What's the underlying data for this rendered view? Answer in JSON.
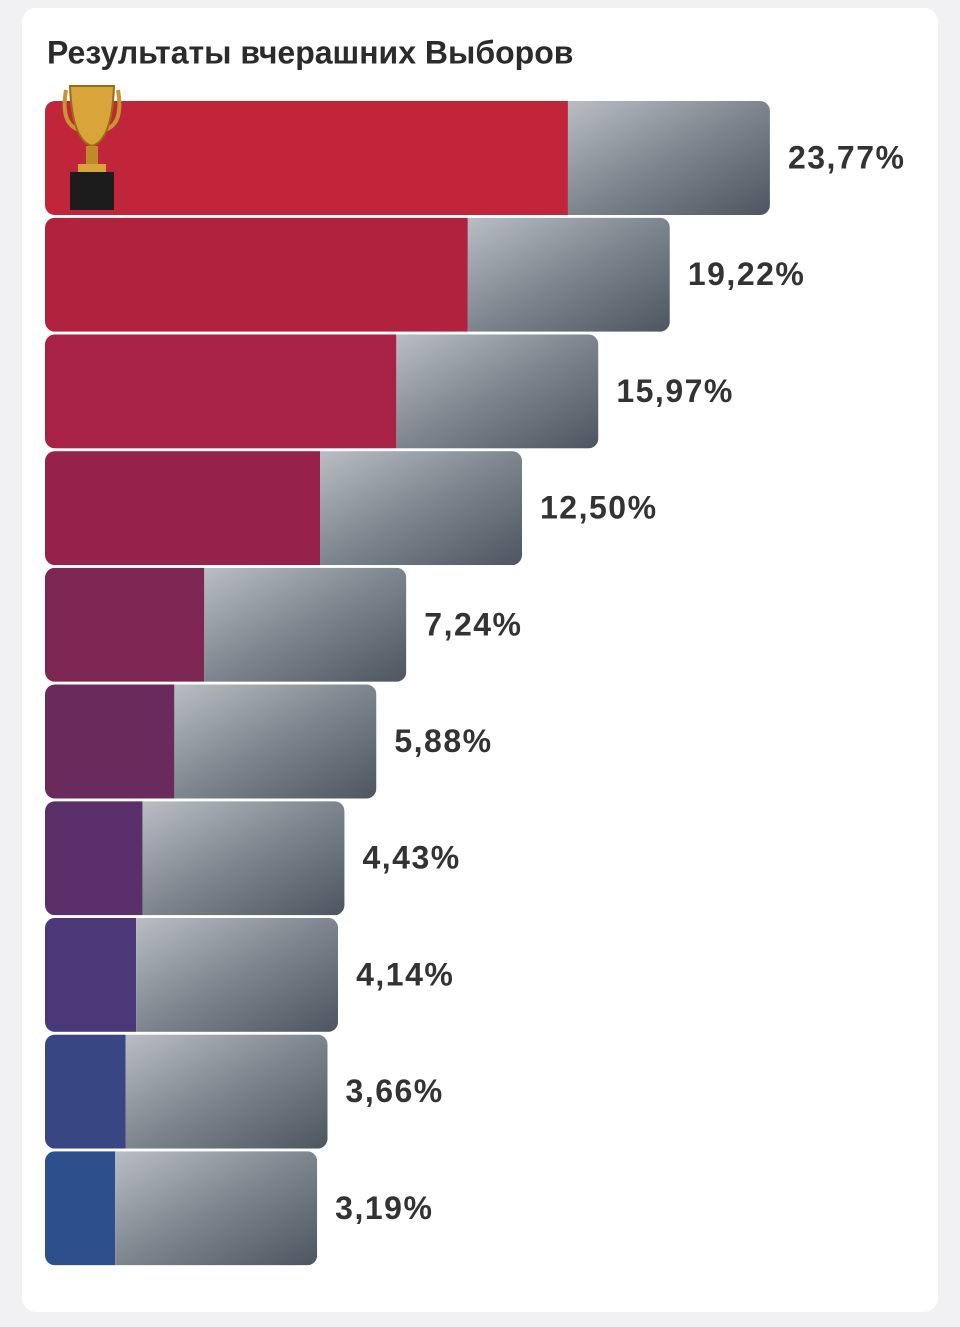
{
  "chart_data": {
    "type": "bar",
    "orientation": "horizontal",
    "title": "Результаты вчерашних Выборов",
    "values": [
      23.77,
      19.22,
      15.97,
      12.5,
      7.24,
      5.88,
      4.43,
      4.14,
      3.66,
      3.19
    ],
    "value_labels": [
      "23,77%",
      "19,22%",
      "15,97%",
      "12,50%",
      "7,24%",
      "5,88%",
      "4,43%",
      "4,14%",
      "3,66%",
      "3,19%"
    ],
    "colors": [
      "#c0253a",
      "#b1223f",
      "#a72244",
      "#96224b",
      "#7d2553",
      "#6a2a5c",
      "#5a2f6a",
      "#4a3878",
      "#384683",
      "#2d4f8c"
    ]
  }
}
